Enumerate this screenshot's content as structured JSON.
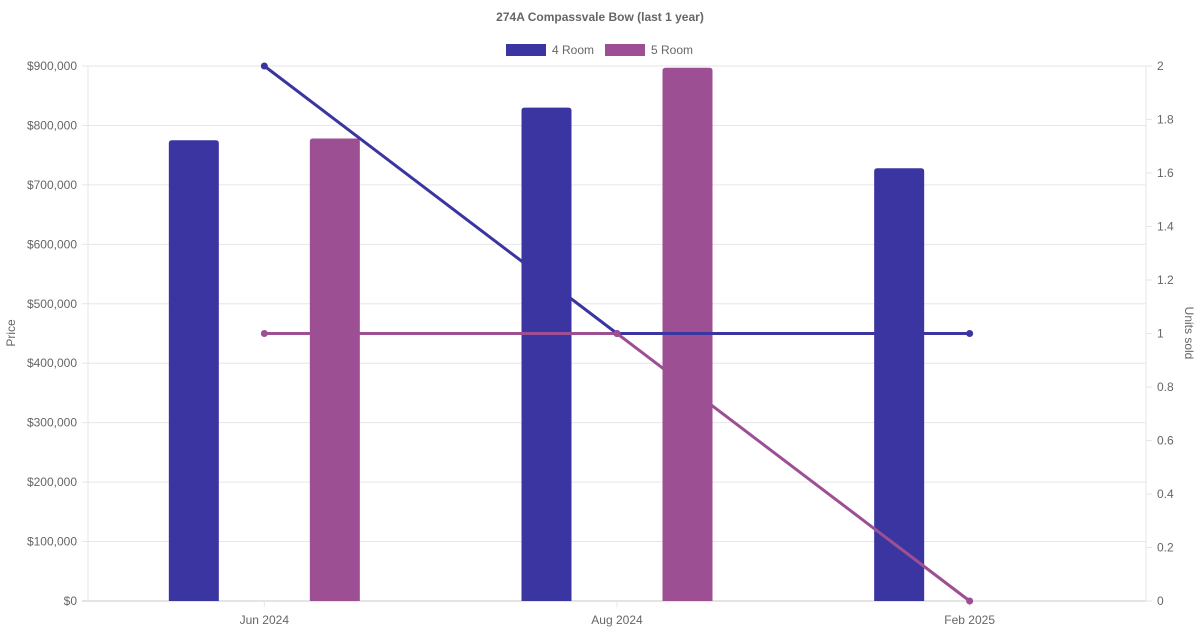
{
  "chart_data": {
    "type": "bar",
    "title": "274A Compassvale Bow (last 1 year)",
    "categories": [
      "Jun 2024",
      "Aug 2024",
      "Feb 2025"
    ],
    "y_left": {
      "label": "Price",
      "range": [
        0,
        900000
      ],
      "ticks": [
        "$0",
        "$100,000",
        "$200,000",
        "$300,000",
        "$400,000",
        "$500,000",
        "$600,000",
        "$700,000",
        "$800,000",
        "$900,000"
      ]
    },
    "y_right": {
      "label": "Units sold",
      "range": [
        0,
        2
      ],
      "ticks": [
        "0",
        "0.2",
        "0.4",
        "0.6",
        "0.8",
        "1",
        "1.2",
        "1.4",
        "1.6",
        "1.8",
        "2"
      ]
    },
    "legend": {
      "position": "top-center"
    },
    "grid": true,
    "series": [
      {
        "name": "4 Room",
        "color": "#3a35a0",
        "price_bars": [
          775000,
          830000,
          728000
        ],
        "units_line": [
          2,
          1,
          1
        ]
      },
      {
        "name": "5 Room",
        "color": "#9d4f93",
        "price_bars": [
          778000,
          897000,
          null
        ],
        "units_line": [
          1,
          1,
          0
        ]
      }
    ]
  }
}
